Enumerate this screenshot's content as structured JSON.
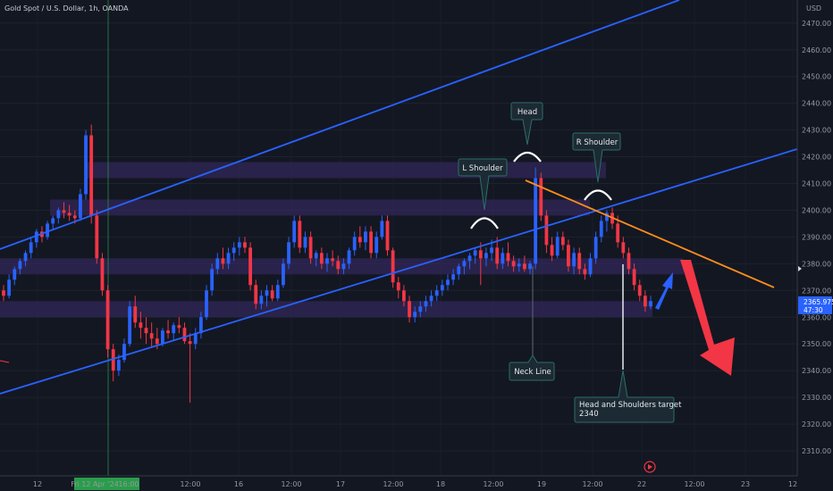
{
  "header": {
    "title": "Gold Spot / U.S. Dollar, 1h, OANDA"
  },
  "axis": {
    "currency": "USD",
    "price_ticks": [
      2310,
      2320,
      2330,
      2340,
      2350,
      2360,
      2370,
      2380,
      2390,
      2400,
      2410,
      2420,
      2430,
      2440,
      2450,
      2460,
      2470
    ],
    "price_tick_labels": [
      "2310.00",
      "2320.00",
      "2330.00",
      "2340.00",
      "2350.00",
      "2360.00",
      "2370.00",
      "2380.00",
      "2390.00",
      "2400.00",
      "2410.00",
      "2420.00",
      "2430.00",
      "2440.00",
      "2450.00",
      "2460.00",
      "2470.00"
    ],
    "time_labels": [
      "12",
      "Fri 12 Apr '24",
      "16:00",
      "12:00",
      "16",
      "12:00",
      "17",
      "12:00",
      "18",
      "12:00",
      "19",
      "12:00",
      "22",
      "12:00",
      "23",
      "12"
    ],
    "current_price": "2365.975",
    "countdown": "47:30"
  },
  "colors": {
    "background": "#131722",
    "up": "#2962ff",
    "down": "#f23645",
    "trendline": "#2962ff",
    "neckline_orange": "#ff8c1a",
    "zone": "#3d2b6b",
    "arrow_blue": "#2962ff",
    "arrow_red": "#f23645",
    "price_tag": "#2962ff",
    "time_marker": "#2a9d4b"
  },
  "annotations": {
    "l_shoulder": "L Shoulder",
    "head": "Head",
    "r_shoulder": "R Shoulder",
    "neck_line": "Neck Line",
    "target": "Head and Shoulders target\n2340"
  },
  "chart_data": {
    "type": "candlestick",
    "title": "Gold Spot / U.S. Dollar, 1h, OANDA",
    "ylabel": "USD",
    "ylim": [
      2302,
      2480
    ],
    "candles": [
      [
        2370,
        2372,
        2366,
        2368
      ],
      [
        2368,
        2376,
        2367,
        2374
      ],
      [
        2374,
        2379,
        2372,
        2378
      ],
      [
        2378,
        2382,
        2376,
        2381
      ],
      [
        2381,
        2385,
        2379,
        2384
      ],
      [
        2384,
        2390,
        2382,
        2388
      ],
      [
        2388,
        2393,
        2386,
        2392
      ],
      [
        2392,
        2394,
        2388,
        2390
      ],
      [
        2390,
        2396,
        2389,
        2395
      ],
      [
        2395,
        2398,
        2393,
        2397
      ],
      [
        2397,
        2401,
        2395,
        2400
      ],
      [
        2400,
        2403,
        2397,
        2399
      ],
      [
        2399,
        2402,
        2396,
        2398
      ],
      [
        2398,
        2400,
        2395,
        2397
      ],
      [
        2397,
        2408,
        2396,
        2406
      ],
      [
        2406,
        2430,
        2404,
        2428
      ],
      [
        2428,
        2432,
        2395,
        2398
      ],
      [
        2398,
        2400,
        2380,
        2382
      ],
      [
        2382,
        2384,
        2368,
        2370
      ],
      [
        2370,
        2372,
        2345,
        2348
      ],
      [
        2348,
        2350,
        2336,
        2340
      ],
      [
        2340,
        2346,
        2338,
        2344
      ],
      [
        2344,
        2352,
        2343,
        2350
      ],
      [
        2350,
        2366,
        2349,
        2364
      ],
      [
        2364,
        2368,
        2356,
        2358
      ],
      [
        2358,
        2362,
        2352,
        2356
      ],
      [
        2356,
        2360,
        2350,
        2354
      ],
      [
        2354,
        2358,
        2349,
        2352
      ],
      [
        2352,
        2356,
        2348,
        2350
      ],
      [
        2350,
        2356,
        2349,
        2355
      ],
      [
        2355,
        2359,
        2352,
        2354
      ],
      [
        2354,
        2358,
        2351,
        2357
      ],
      [
        2357,
        2360,
        2354,
        2356
      ],
      [
        2356,
        2358,
        2350,
        2351
      ],
      [
        2351,
        2354,
        2328,
        2350
      ],
      [
        2350,
        2356,
        2348,
        2354
      ],
      [
        2354,
        2362,
        2352,
        2360
      ],
      [
        2360,
        2372,
        2359,
        2370
      ],
      [
        2370,
        2380,
        2368,
        2378
      ],
      [
        2378,
        2384,
        2376,
        2382
      ],
      [
        2382,
        2386,
        2378,
        2380
      ],
      [
        2380,
        2386,
        2378,
        2384
      ],
      [
        2384,
        2388,
        2381,
        2386
      ],
      [
        2386,
        2390,
        2383,
        2388
      ],
      [
        2388,
        2390,
        2384,
        2386
      ],
      [
        2386,
        2388,
        2370,
        2372
      ],
      [
        2372,
        2374,
        2363,
        2365
      ],
      [
        2365,
        2370,
        2363,
        2368
      ],
      [
        2368,
        2372,
        2364,
        2370
      ],
      [
        2370,
        2372,
        2366,
        2367
      ],
      [
        2367,
        2374,
        2366,
        2372
      ],
      [
        2372,
        2382,
        2371,
        2380
      ],
      [
        2380,
        2390,
        2378,
        2388
      ],
      [
        2388,
        2398,
        2386,
        2396
      ],
      [
        2396,
        2398,
        2384,
        2386
      ],
      [
        2386,
        2392,
        2384,
        2390
      ],
      [
        2390,
        2392,
        2380,
        2382
      ],
      [
        2382,
        2385,
        2379,
        2384
      ],
      [
        2384,
        2386,
        2378,
        2380
      ],
      [
        2380,
        2384,
        2377,
        2382
      ],
      [
        2382,
        2385,
        2379,
        2381
      ],
      [
        2381,
        2383,
        2376,
        2378
      ],
      [
        2378,
        2382,
        2376,
        2380
      ],
      [
        2380,
        2386,
        2378,
        2385
      ],
      [
        2385,
        2392,
        2383,
        2390
      ],
      [
        2390,
        2394,
        2386,
        2388
      ],
      [
        2388,
        2394,
        2385,
        2392
      ],
      [
        2392,
        2394,
        2382,
        2384
      ],
      [
        2384,
        2392,
        2382,
        2390
      ],
      [
        2390,
        2398,
        2389,
        2396
      ],
      [
        2396,
        2398,
        2383,
        2385
      ],
      [
        2385,
        2386,
        2371,
        2373
      ],
      [
        2373,
        2375,
        2367,
        2370
      ],
      [
        2370,
        2372,
        2364,
        2366
      ],
      [
        2366,
        2368,
        2358,
        2360
      ],
      [
        2360,
        2364,
        2358,
        2362
      ],
      [
        2362,
        2366,
        2360,
        2364
      ],
      [
        2364,
        2368,
        2362,
        2366
      ],
      [
        2366,
        2370,
        2364,
        2368
      ],
      [
        2368,
        2372,
        2366,
        2370
      ],
      [
        2370,
        2374,
        2368,
        2372
      ],
      [
        2372,
        2376,
        2370,
        2374
      ],
      [
        2374,
        2378,
        2372,
        2376
      ],
      [
        2376,
        2380,
        2374,
        2379
      ],
      [
        2379,
        2382,
        2376,
        2381
      ],
      [
        2381,
        2384,
        2378,
        2383
      ],
      [
        2383,
        2386,
        2380,
        2385
      ],
      [
        2385,
        2388,
        2372,
        2382
      ],
      [
        2382,
        2386,
        2379,
        2384
      ],
      [
        2384,
        2389,
        2381,
        2386
      ],
      [
        2386,
        2390,
        2378,
        2380
      ],
      [
        2380,
        2386,
        2378,
        2384
      ],
      [
        2384,
        2388,
        2379,
        2381
      ],
      [
        2381,
        2383,
        2377,
        2379
      ],
      [
        2379,
        2382,
        2377,
        2380
      ],
      [
        2380,
        2383,
        2377,
        2378
      ],
      [
        2378,
        2381,
        2376,
        2380
      ],
      [
        2380,
        2416,
        2378,
        2412
      ],
      [
        2412,
        2414,
        2396,
        2398
      ],
      [
        2398,
        2400,
        2384,
        2387
      ],
      [
        2387,
        2390,
        2381,
        2383
      ],
      [
        2383,
        2392,
        2382,
        2390
      ],
      [
        2390,
        2392,
        2385,
        2387
      ],
      [
        2387,
        2389,
        2377,
        2379
      ],
      [
        2379,
        2386,
        2376,
        2384
      ],
      [
        2384,
        2386,
        2376,
        2378
      ],
      [
        2378,
        2380,
        2374,
        2376
      ],
      [
        2376,
        2384,
        2375,
        2382
      ],
      [
        2382,
        2392,
        2380,
        2390
      ],
      [
        2390,
        2398,
        2388,
        2396
      ],
      [
        2396,
        2400,
        2392,
        2399
      ],
      [
        2399,
        2401,
        2393,
        2395
      ],
      [
        2395,
        2398,
        2386,
        2388
      ],
      [
        2388,
        2390,
        2382,
        2384
      ],
      [
        2384,
        2386,
        2376,
        2378
      ],
      [
        2378,
        2380,
        2370,
        2372
      ],
      [
        2372,
        2374,
        2366,
        2368
      ],
      [
        2368,
        2370,
        2362,
        2364
      ],
      [
        2364,
        2368,
        2363,
        2366
      ]
    ],
    "zones": [
      [
        2412,
        2418
      ],
      [
        2398,
        2404
      ],
      [
        2376,
        2382
      ],
      [
        2360,
        2366
      ]
    ],
    "current_price": 2365.975
  }
}
